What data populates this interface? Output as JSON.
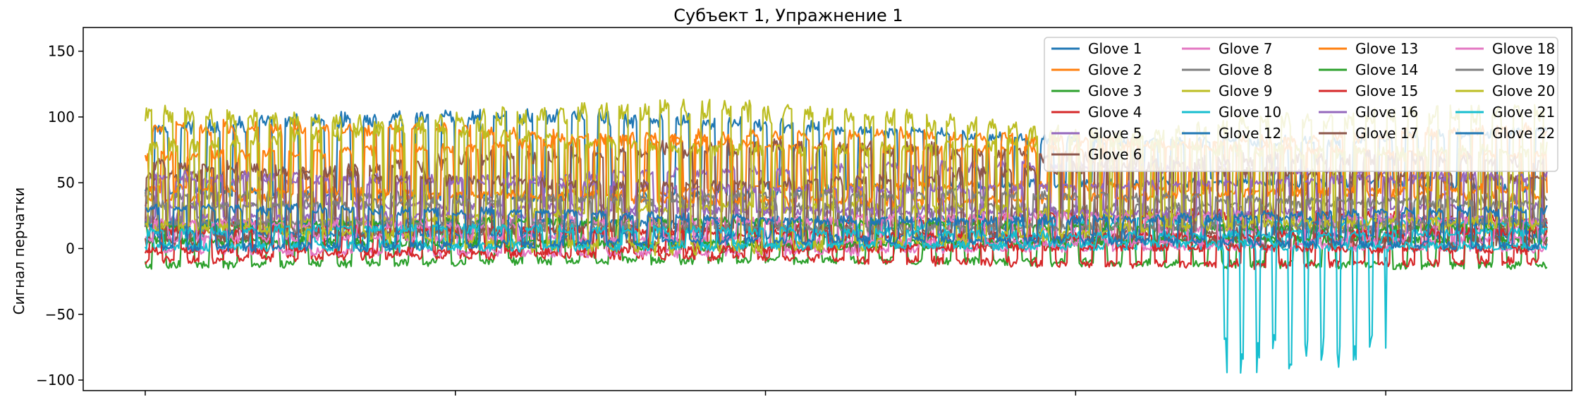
{
  "chart_data": {
    "type": "line",
    "title": "Субъект 1, Упражнение 1",
    "xlabel": "",
    "ylabel": "Сигнал перчатки",
    "ylim": [
      -108,
      168
    ],
    "xlim": [
      -50,
      1150
    ],
    "yticks": [
      -100,
      -50,
      0,
      50,
      100,
      150
    ],
    "ytick_labels": [
      "−100",
      "−50",
      "0",
      "50",
      "100",
      "150"
    ],
    "xticks": [
      0,
      250,
      500,
      750,
      1000
    ],
    "xtick_labels": [
      "",
      "",
      "",
      "",
      ""
    ],
    "x_range": [
      0,
      1130
    ],
    "grid": false,
    "legend_position": "top-right",
    "legend_columns": 4,
    "series": [
      {
        "name": "Glove 1",
        "color": "#1f77b4",
        "base": 62,
        "amp": 42,
        "period": 21.0
      },
      {
        "name": "Glove 2",
        "color": "#ff7f0e",
        "base": 58,
        "amp": 38,
        "period": 19.0
      },
      {
        "name": "Glove 3",
        "color": "#2ca02c",
        "base": -5,
        "amp": 14,
        "period": 23.0
      },
      {
        "name": "Glove 4",
        "color": "#d62728",
        "base": 2,
        "amp": 26,
        "period": 20.0
      },
      {
        "name": "Glove 5",
        "color": "#9467bd",
        "base": 40,
        "amp": 25,
        "period": 22.0
      },
      {
        "name": "Glove 6",
        "color": "#8c564b",
        "base": 30,
        "amp": 52,
        "period": 18.0
      },
      {
        "name": "Glove 7",
        "color": "#e377c2",
        "base": 6,
        "amp": 18,
        "period": 24.0
      },
      {
        "name": "Glove 8",
        "color": "#7f7f7f",
        "base": 22,
        "amp": 20,
        "period": 25.0
      },
      {
        "name": "Glove 9",
        "color": "#bcbd22",
        "base": 48,
        "amp": 60,
        "period": 17.0
      },
      {
        "name": "Glove 10",
        "color": "#17becf",
        "base": 8,
        "amp": 14,
        "period": 26.0
      },
      {
        "name": "Glove 12",
        "color": "#1f77b4",
        "base": 14,
        "amp": 10,
        "period": 27.0
      },
      {
        "name": "Glove 13",
        "color": "#ff7f0e",
        "base": 55,
        "amp": 35,
        "period": 20.5
      },
      {
        "name": "Glove 14",
        "color": "#2ca02c",
        "base": 10,
        "amp": 12,
        "period": 28.0
      },
      {
        "name": "Glove 15",
        "color": "#d62728",
        "base": 4,
        "amp": 12,
        "period": 29.0
      },
      {
        "name": "Glove 16",
        "color": "#9467bd",
        "base": 35,
        "amp": 22,
        "period": 21.5
      },
      {
        "name": "Glove 17",
        "color": "#8c564b",
        "base": 28,
        "amp": 45,
        "period": 19.5
      },
      {
        "name": "Glove 18",
        "color": "#e377c2",
        "base": 12,
        "amp": 14,
        "period": 23.5
      },
      {
        "name": "Glove 19",
        "color": "#7f7f7f",
        "base": 25,
        "amp": 18,
        "period": 24.5
      },
      {
        "name": "Glove 20",
        "color": "#bcbd22",
        "base": 40,
        "amp": 72,
        "period": 16.5
      },
      {
        "name": "Glove 21",
        "color": "#17becf",
        "base": 6,
        "amp": 10,
        "period": 25.5
      },
      {
        "name": "Glove 22",
        "color": "#1f77b4",
        "base": 12,
        "amp": 20,
        "period": 22.5
      }
    ],
    "special_dips": {
      "series": "Glove 10",
      "x_start": 870,
      "x_end": 1000,
      "step": 13,
      "min_value": -95
    }
  }
}
